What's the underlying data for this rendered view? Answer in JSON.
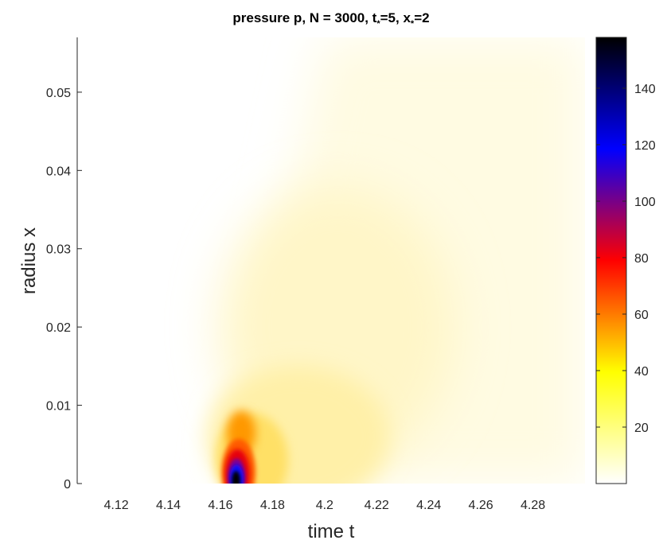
{
  "chart_data": {
    "type": "heatmap",
    "title": "pressure p, N = 3000, t",
    "title_sub1": "*",
    "title_mid": "=5, x",
    "title_sub2": "*",
    "title_end": "=2",
    "xlabel": "time t",
    "ylabel": "radius x",
    "xlim": [
      4.105,
      4.3
    ],
    "ylim": [
      0,
      0.057
    ],
    "x_ticks": [
      4.12,
      4.14,
      4.16,
      4.18,
      4.2,
      4.22,
      4.24,
      4.26,
      4.28
    ],
    "x_tick_labels": [
      "4.12",
      "4.14",
      "4.16",
      "4.18",
      "4.2",
      "4.22",
      "4.24",
      "4.26",
      "4.28"
    ],
    "y_ticks": [
      0,
      0.01,
      0.02,
      0.03,
      0.04,
      0.05
    ],
    "y_tick_labels": [
      "0",
      "0.01",
      "0.02",
      "0.03",
      "0.04",
      "0.05"
    ],
    "colorbar": {
      "limits": [
        0,
        158
      ],
      "ticks": [
        20,
        40,
        60,
        80,
        100,
        120,
        140
      ],
      "tick_labels": [
        "20",
        "40",
        "60",
        "80",
        "100",
        "120",
        "140"
      ],
      "colormap": [
        "#ffffff",
        "#ffff00",
        "#ff0000",
        "#0000ff",
        "#000000"
      ]
    },
    "field_features": {
      "peak_value": 158,
      "peak_location": {
        "t": 4.166,
        "x": 0.0
      },
      "onset_time": 4.162,
      "secondary_lobe": {
        "t": 4.168,
        "x": 0.0065,
        "value": 50
      },
      "wave_front_end": {
        "t": 4.235,
        "x": 0.057
      }
    },
    "grid": false
  }
}
